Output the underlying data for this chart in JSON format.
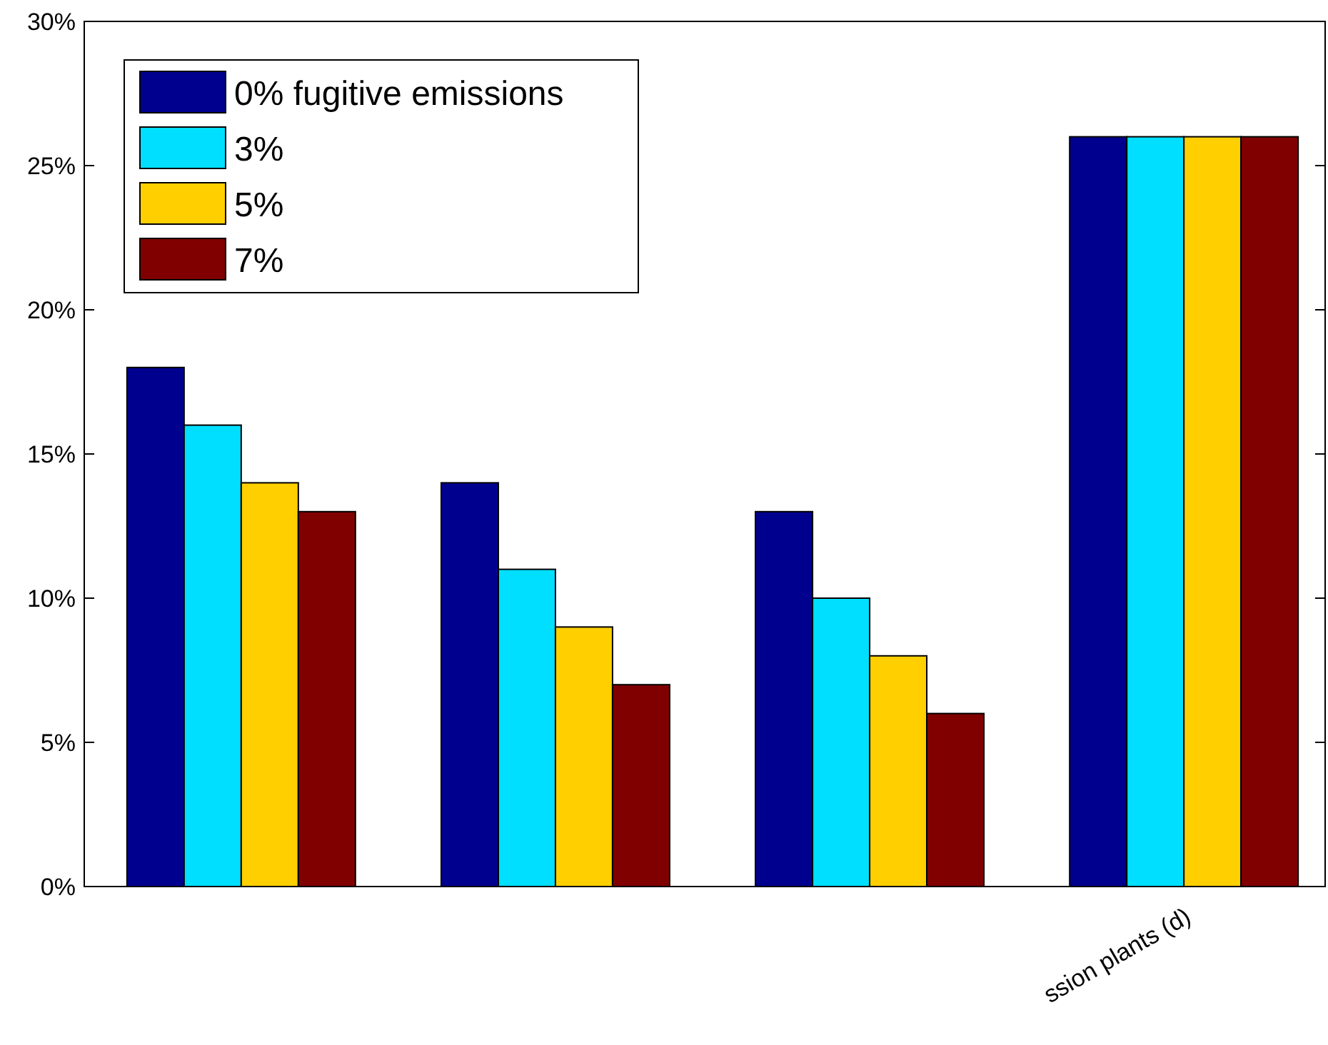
{
  "chart_data": {
    "type": "bar",
    "categories": [
      null,
      null,
      null,
      "ssion plants (d)"
    ],
    "series": [
      {
        "name": "0% fugitive emissions",
        "color": "#00008f",
        "values": [
          18,
          14,
          13,
          26
        ]
      },
      {
        "name": "3%",
        "color": "#00dfff",
        "values": [
          16,
          11,
          10,
          26
        ]
      },
      {
        "name": "5%",
        "color": "#ffcf00",
        "values": [
          14,
          9,
          8,
          26
        ]
      },
      {
        "name": "7%",
        "color": "#800000",
        "values": [
          13,
          7,
          6,
          26
        ]
      }
    ],
    "ylim": [
      0,
      30
    ],
    "yticks": [
      {
        "value": 0,
        "label": "0%"
      },
      {
        "value": 5,
        "label": "5%"
      },
      {
        "value": 10,
        "label": "10%"
      },
      {
        "value": 15,
        "label": "15%"
      },
      {
        "value": 20,
        "label": "20%"
      },
      {
        "value": 25,
        "label": "25%"
      },
      {
        "value": 30,
        "label": "30%"
      }
    ],
    "grid": false,
    "legend": "top left"
  }
}
